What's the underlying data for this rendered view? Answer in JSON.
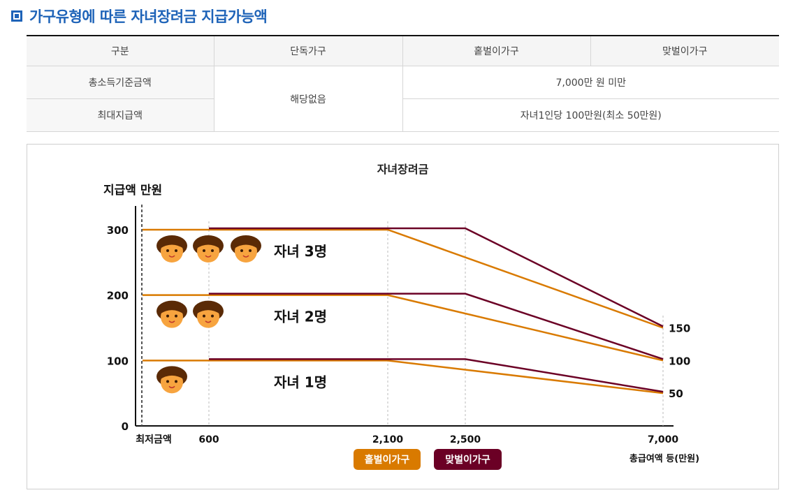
{
  "heading": "가구유형에 따른 자녀장려금 지급가능액",
  "table": {
    "headers": [
      "구분",
      "단독가구",
      "홑벌이가구",
      "맞벌이가구"
    ],
    "rows": [
      {
        "label": "총소득기준금액",
        "value": "7,000만 원 미만"
      },
      {
        "label": "최대지급액",
        "value": "자녀1인당 100만원(최소 50만원)"
      }
    ],
    "single_household": "해당없음"
  },
  "colors": {
    "single_earner": "#d97a00",
    "dual_earner": "#6b0025",
    "heading": "#1e63b8"
  },
  "chart_data": {
    "type": "line",
    "title": "자녀장려금",
    "ylabel": "지급액 만원",
    "xlabel": "총급여액 등(만원)",
    "x_ticks": [
      "최저금액",
      "600",
      "2,100",
      "2,500",
      "7,000"
    ],
    "y_ticks": [
      "0",
      "100",
      "200",
      "300"
    ],
    "right_labels": [
      "150",
      "100",
      "50"
    ],
    "ylim": [
      0,
      300
    ],
    "groups": [
      {
        "label": "자녀 3명",
        "children": 3,
        "series": [
          {
            "name": "홑벌이가구",
            "points": [
              [
                0,
                300
              ],
              [
                600,
                300
              ],
              [
                2100,
                300
              ],
              [
                7000,
                150
              ]
            ]
          },
          {
            "name": "맞벌이가구",
            "points": [
              [
                600,
                300
              ],
              [
                2500,
                300
              ],
              [
                7000,
                150
              ]
            ]
          }
        ]
      },
      {
        "label": "자녀 2명",
        "children": 2,
        "series": [
          {
            "name": "홑벌이가구",
            "points": [
              [
                0,
                200
              ],
              [
                600,
                200
              ],
              [
                2100,
                200
              ],
              [
                7000,
                100
              ]
            ]
          },
          {
            "name": "맞벌이가구",
            "points": [
              [
                600,
                200
              ],
              [
                2500,
                200
              ],
              [
                7000,
                100
              ]
            ]
          }
        ]
      },
      {
        "label": "자녀 1명",
        "children": 1,
        "series": [
          {
            "name": "홑벌이가구",
            "points": [
              [
                0,
                100
              ],
              [
                600,
                100
              ],
              [
                2100,
                100
              ],
              [
                7000,
                50
              ]
            ]
          },
          {
            "name": "맞벌이가구",
            "points": [
              [
                600,
                100
              ],
              [
                2500,
                100
              ],
              [
                7000,
                50
              ]
            ]
          }
        ]
      }
    ],
    "legend": [
      "홑벌이가구",
      "맞벌이가구"
    ]
  }
}
